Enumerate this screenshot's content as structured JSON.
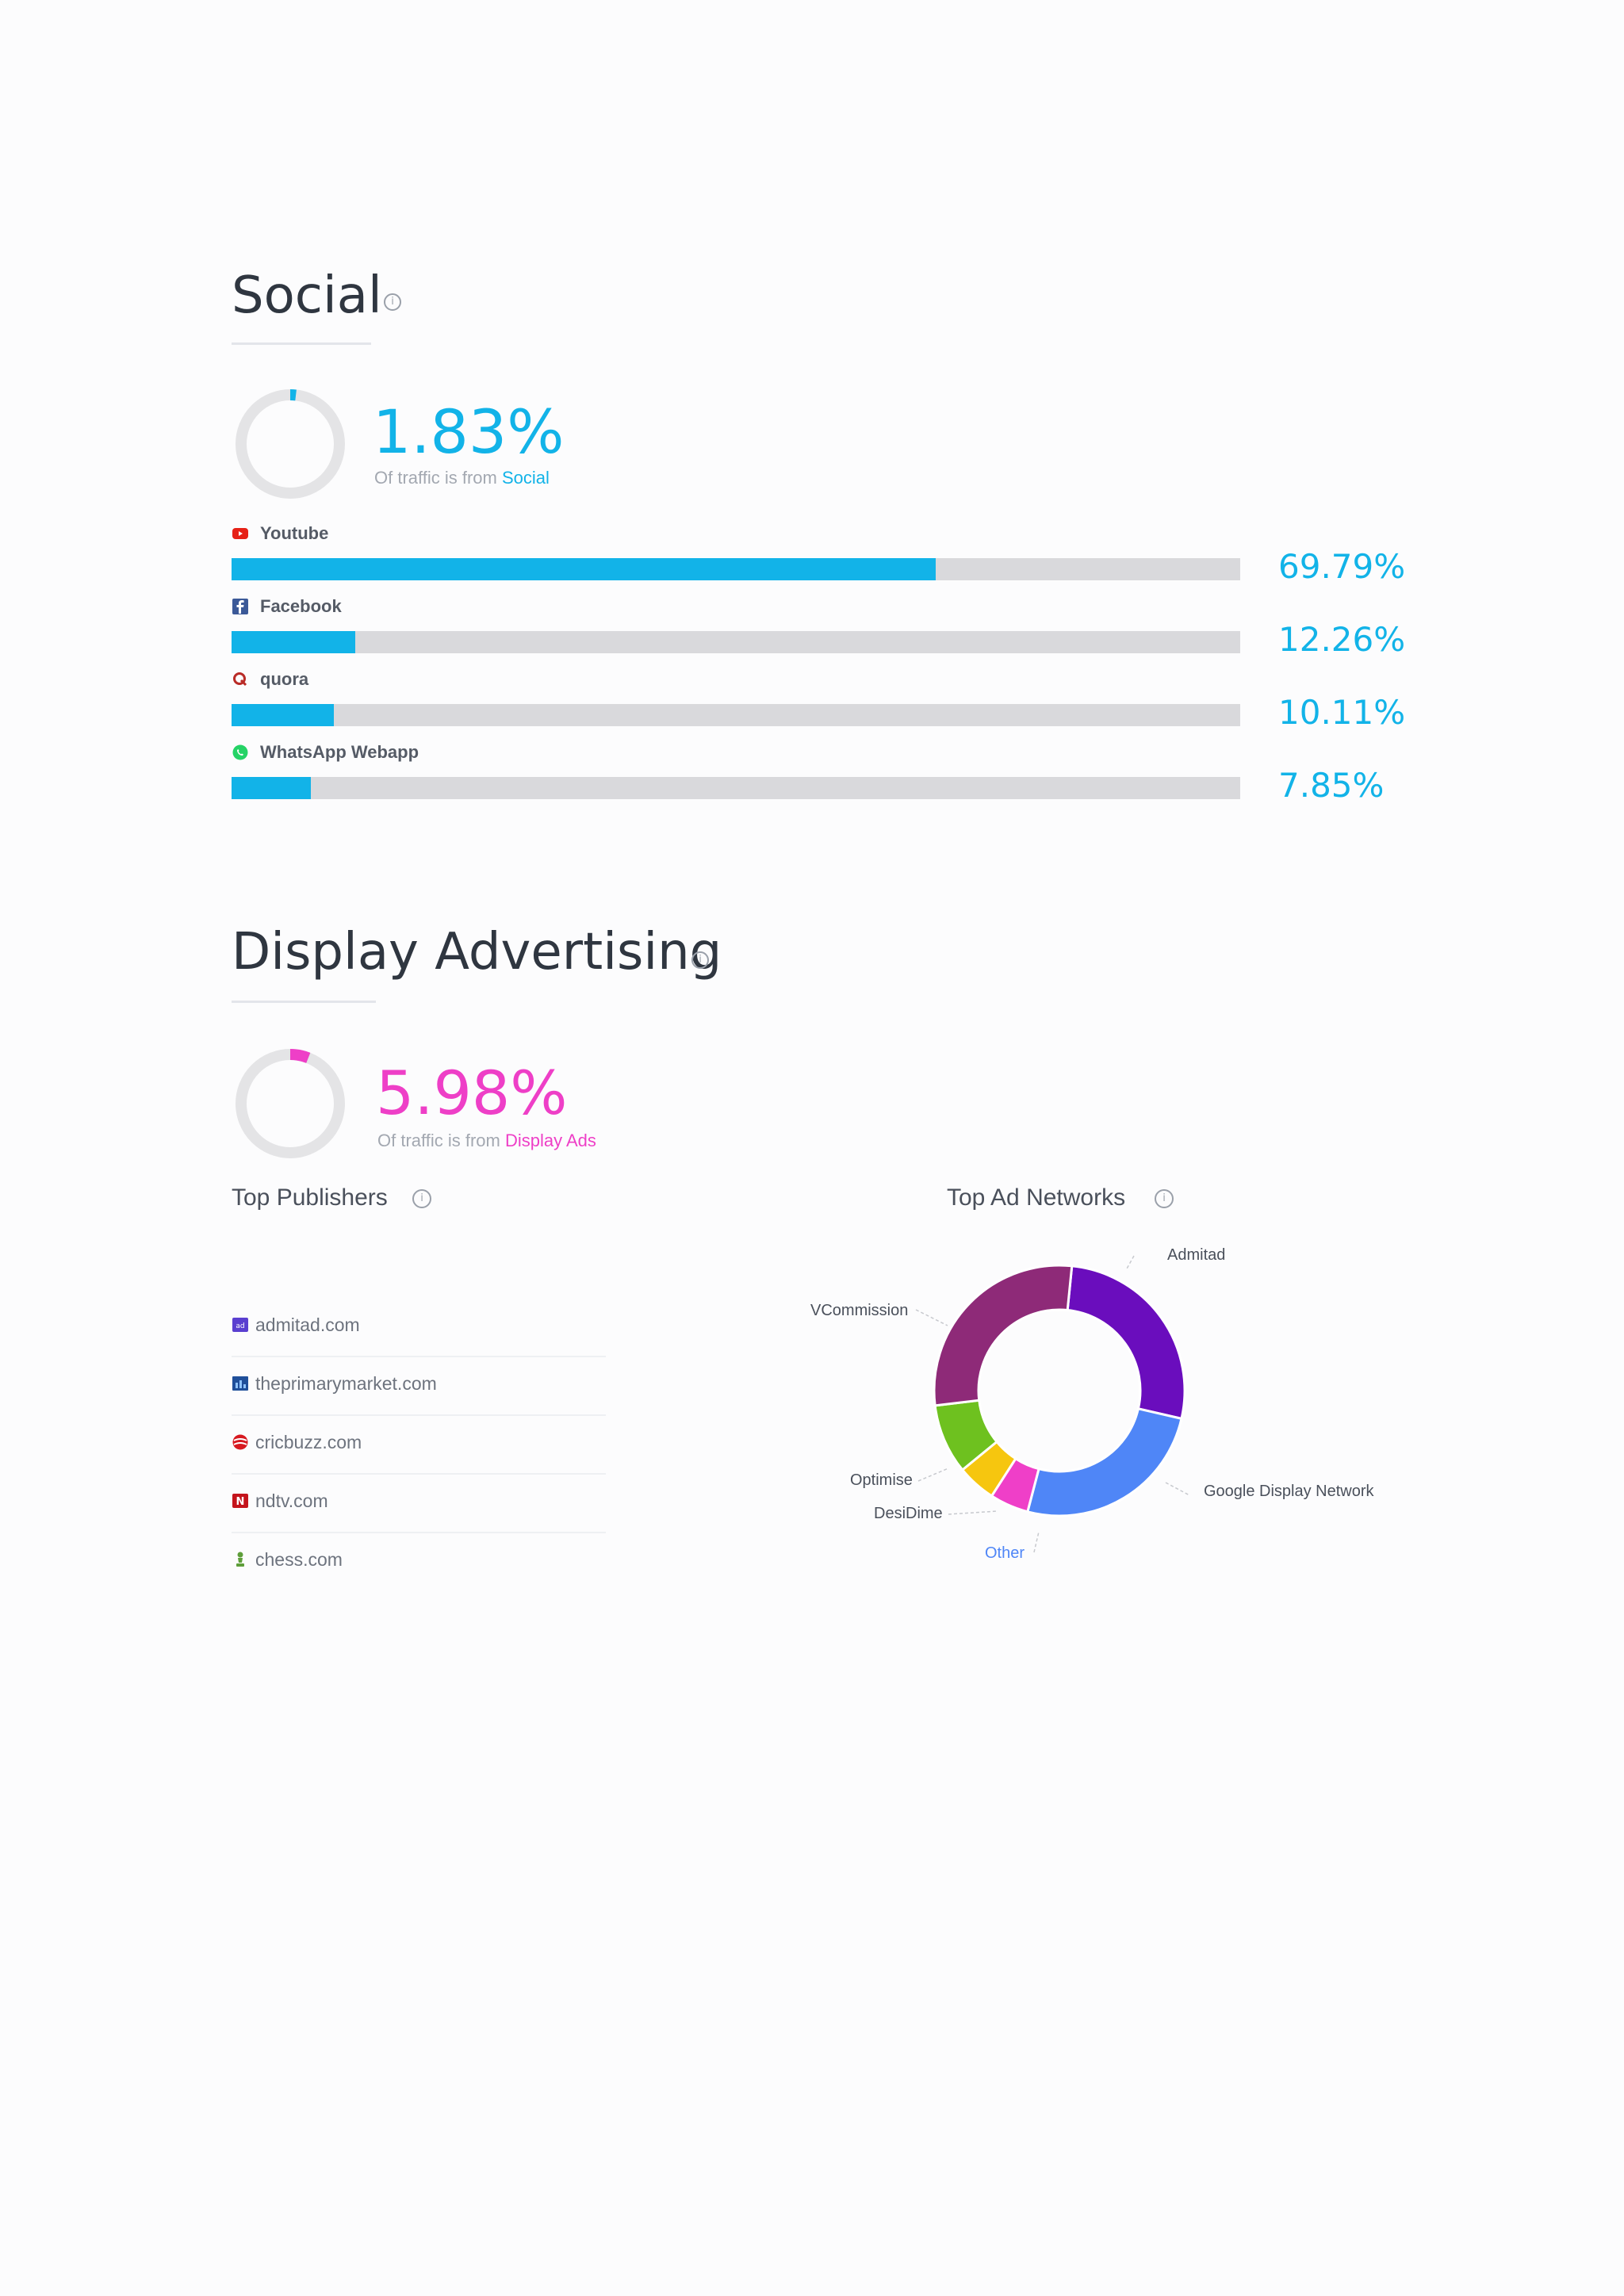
{
  "social": {
    "title": "Social",
    "percent": "1.83%",
    "percent_value": 1.83,
    "subtitle_prefix": "Of traffic is from ",
    "subtitle_link": "Social",
    "accent_color": "#12b3e8",
    "sources": [
      {
        "name": "Youtube",
        "icon": "youtube-icon",
        "percent": "69.79%",
        "value": 69.79
      },
      {
        "name": "Facebook",
        "icon": "facebook-icon",
        "percent": "12.26%",
        "value": 12.26
      },
      {
        "name": "quora",
        "icon": "quora-icon",
        "percent": "10.11%",
        "value": 10.11
      },
      {
        "name": "WhatsApp Webapp",
        "icon": "whatsapp-icon",
        "percent": "7.85%",
        "value": 7.85
      }
    ]
  },
  "display": {
    "title": "Display Advertising",
    "percent": "5.98%",
    "percent_value": 5.98,
    "subtitle_prefix": "Of traffic is from ",
    "subtitle_link": "Display Ads",
    "accent_color": "#ee3fc7",
    "top_publishers_title": "Top Publishers",
    "publishers": [
      {
        "name": "admitad.com",
        "icon": "admitad-icon"
      },
      {
        "name": "theprimarymarket.com",
        "icon": "theprimarymarket-icon"
      },
      {
        "name": "cricbuzz.com",
        "icon": "cricbuzz-icon"
      },
      {
        "name": "ndtv.com",
        "icon": "ndtv-icon"
      },
      {
        "name": "chess.com",
        "icon": "chess-icon"
      }
    ],
    "top_ad_networks_title": "Top Ad Networks",
    "ad_networks": [
      {
        "name": "Admitad",
        "value": 27,
        "color": "#6a0dbd"
      },
      {
        "name": "Google Display Network",
        "value": 25.5,
        "color": "#4f86f7"
      },
      {
        "name": "Other",
        "value": 5,
        "color": "#ef3fc8"
      },
      {
        "name": "DesiDime",
        "value": 5,
        "color": "#f6c60f"
      },
      {
        "name": "Optimise",
        "value": 9,
        "color": "#6ec11f"
      },
      {
        "name": "VCommission",
        "value": 28.5,
        "color": "#8e2a78"
      }
    ]
  }
}
